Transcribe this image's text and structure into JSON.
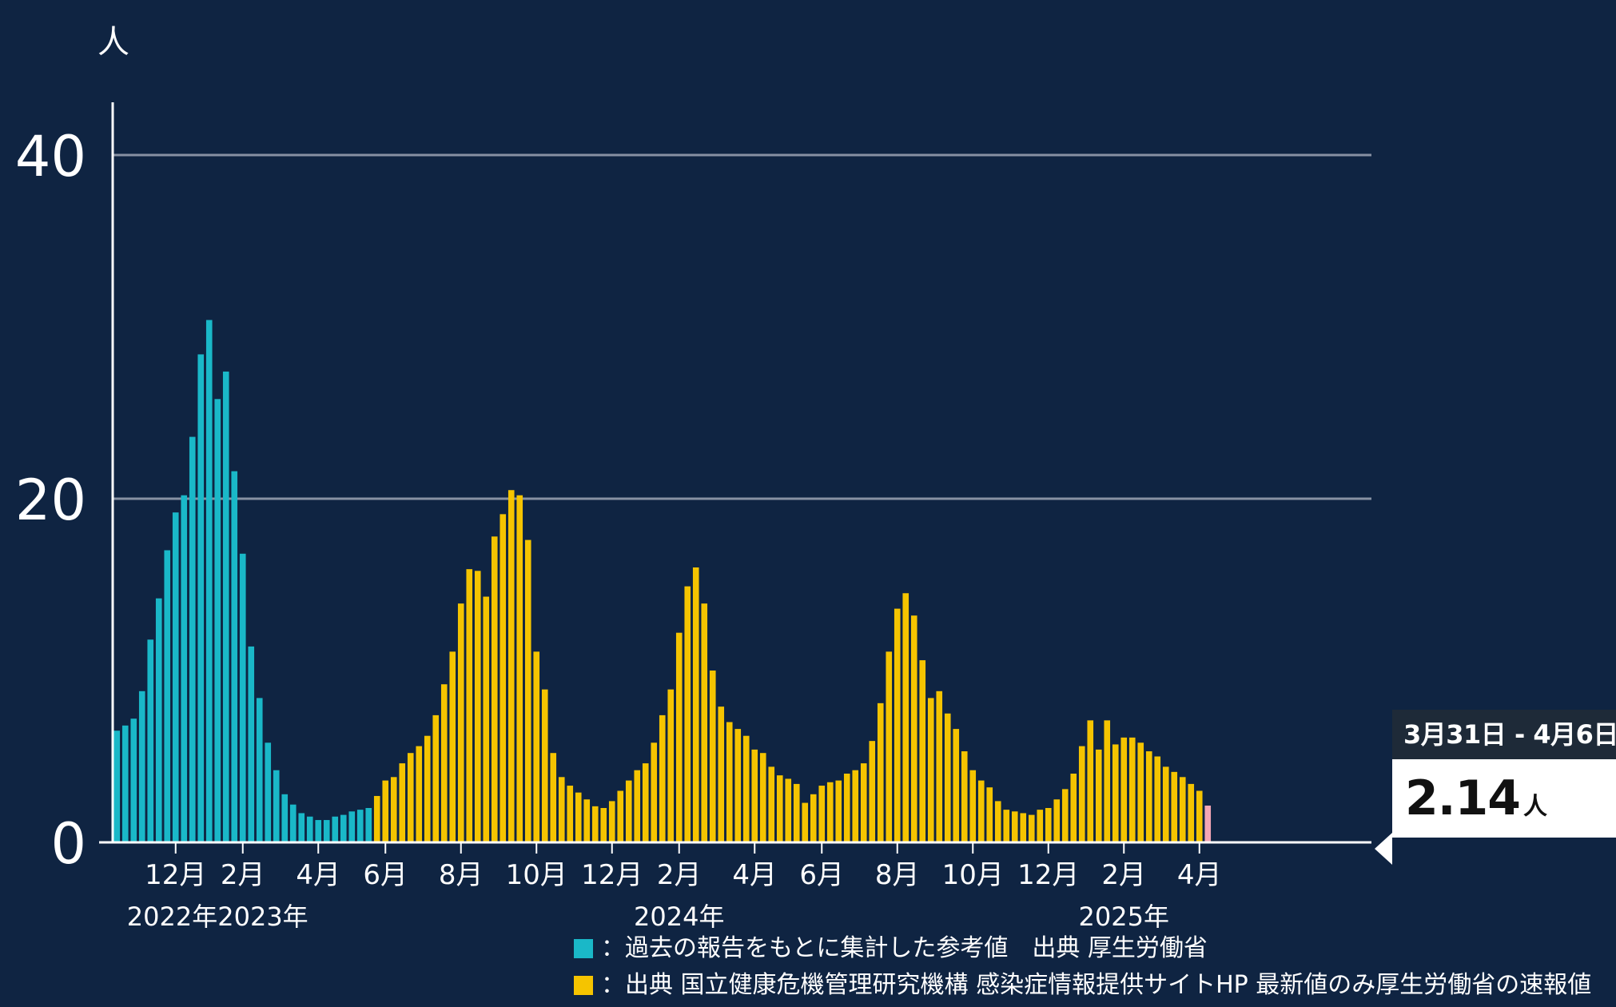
{
  "chart_data": {
    "type": "bar",
    "ylabel": "人",
    "ylim": [
      0,
      40
    ],
    "y_ticks": [
      "0",
      "20",
      "40"
    ],
    "grid": true,
    "x_month_ticks": [
      {
        "label": "12月",
        "index": 7
      },
      {
        "label": "2月",
        "index": 15
      },
      {
        "label": "4月",
        "index": 24
      },
      {
        "label": "6月",
        "index": 32
      },
      {
        "label": "8月",
        "index": 41
      },
      {
        "label": "10月",
        "index": 50
      },
      {
        "label": "12月",
        "index": 59
      },
      {
        "label": "2月",
        "index": 67
      },
      {
        "label": "4月",
        "index": 76
      },
      {
        "label": "6月",
        "index": 84
      },
      {
        "label": "8月",
        "index": 93
      },
      {
        "label": "10月",
        "index": 102
      },
      {
        "label": "12月",
        "index": 111
      },
      {
        "label": "2月",
        "index": 120
      },
      {
        "label": "4月",
        "index": 129
      }
    ],
    "x_year_labels": [
      {
        "label": "2022年2023年",
        "index": 12
      },
      {
        "label": "2024年",
        "index": 67
      },
      {
        "label": "2025年",
        "index": 120
      }
    ],
    "series": [
      {
        "name": "過去の報告をもとに集計した参考値　出典 厚生労働省",
        "color": "#1ab8c8",
        "start_index": 0,
        "values": [
          6.5,
          6.8,
          7.2,
          8.8,
          11.8,
          14.2,
          17.0,
          19.2,
          20.2,
          23.6,
          28.4,
          30.4,
          25.8,
          27.4,
          21.6,
          16.8,
          11.4,
          8.4,
          5.8,
          4.2,
          2.8,
          2.2,
          1.7,
          1.5,
          1.3,
          1.3,
          1.5,
          1.6,
          1.8,
          1.9,
          2.0
        ]
      },
      {
        "name": "出典 国立健康危機管理研究機構 感染症情報提供サイトHP 最新値のみ厚生労働省の速報値",
        "color": "#f5c400",
        "start_index": 31,
        "values": [
          2.7,
          3.6,
          3.8,
          4.6,
          5.2,
          5.6,
          6.2,
          7.4,
          9.2,
          11.1,
          13.9,
          15.9,
          15.8,
          14.3,
          17.8,
          19.1,
          20.5,
          20.2,
          17.6,
          11.1,
          8.9,
          5.2,
          3.8,
          3.3,
          2.9,
          2.5,
          2.1,
          2.0,
          2.4,
          3.0,
          3.6,
          4.2,
          4.6,
          5.8,
          7.4,
          8.9,
          12.2,
          14.9,
          16.0,
          13.9,
          10.0,
          7.9,
          7.0,
          6.6,
          6.2,
          5.4,
          5.2,
          4.4,
          3.9,
          3.7,
          3.4,
          2.3,
          2.8,
          3.3,
          3.5,
          3.6,
          4.0,
          4.2,
          4.6,
          5.9,
          8.1,
          11.1,
          13.6,
          14.5,
          13.2,
          10.6,
          8.4,
          8.8,
          7.5,
          6.6,
          5.3,
          4.2,
          3.6,
          3.2,
          2.4,
          1.9,
          1.8,
          1.7,
          1.6,
          1.9,
          2.0,
          2.5,
          3.1,
          4.0,
          5.6,
          7.1,
          5.4,
          7.1,
          5.7,
          6.1,
          6.1,
          5.8,
          5.3,
          5.0,
          4.4,
          4.1,
          3.8,
          3.4,
          3.0
        ]
      },
      {
        "name": "速報値",
        "color": "#f4a6b4",
        "start_index": 130,
        "values": [
          2.14
        ]
      }
    ],
    "callout": {
      "date_range": "3月31日 - 4月6日",
      "value": "2.14",
      "unit": "人"
    }
  }
}
